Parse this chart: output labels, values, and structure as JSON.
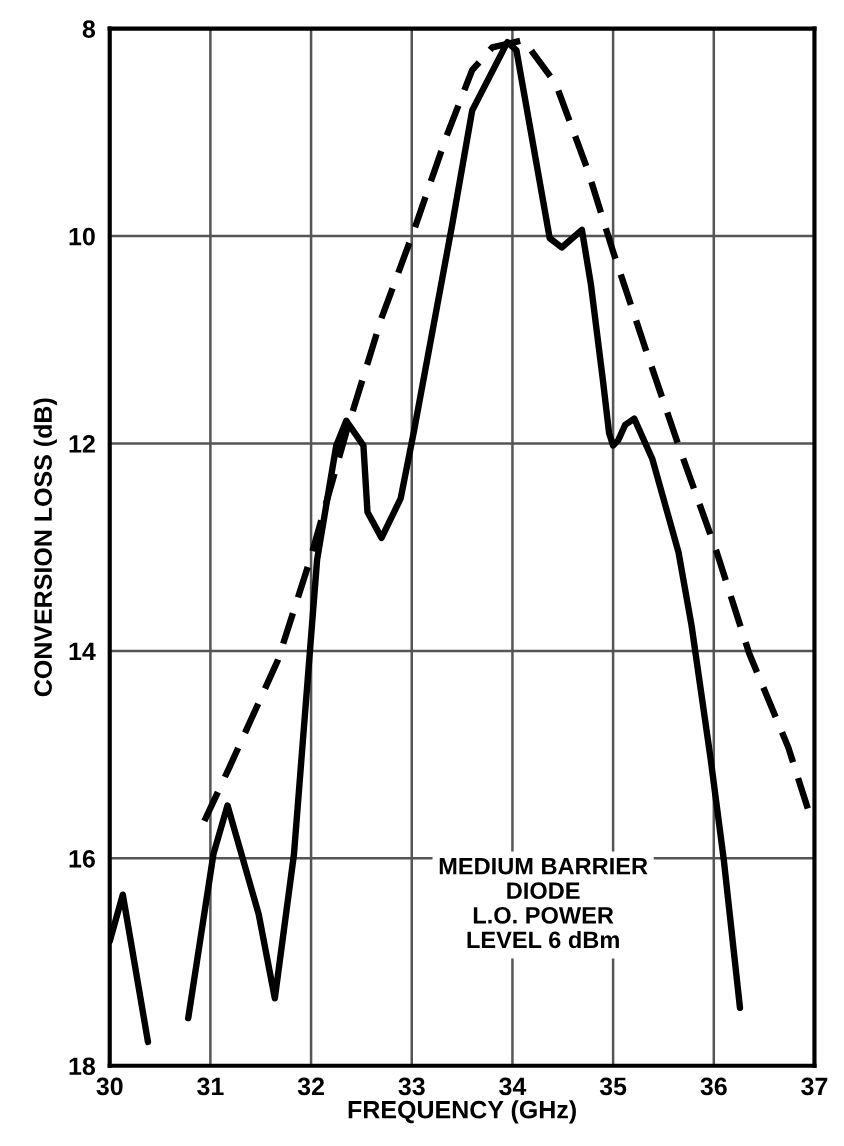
{
  "chart_data": {
    "type": "line",
    "xlabel": "FREQUENCY (GHz)",
    "ylabel": "CONVERSION LOSS (dB)",
    "xlim": [
      30,
      37
    ],
    "xticks": [
      30,
      31,
      32,
      33,
      34,
      35,
      36,
      37
    ],
    "ylim": [
      18,
      8
    ],
    "yticks": [
      8,
      10,
      12,
      14,
      16,
      18
    ],
    "grid": true,
    "annotations": [
      "MEDIUM BARRIER\nDIODE\nL.O. POWER\nLEVEL 6 dBm"
    ],
    "series": [
      {
        "color": "#000000",
        "line_style": "solid",
        "x": [
          30.0,
          30.13,
          30.38,
          30.5,
          30.78,
          31.03,
          31.17,
          31.48,
          31.64,
          31.83,
          32.06,
          32.25,
          32.35,
          32.52,
          32.56,
          32.7,
          32.89,
          33.02,
          33.4,
          33.6,
          33.95,
          34.04,
          34.37,
          34.49,
          34.69,
          34.78,
          34.9,
          34.96,
          35.0,
          35.05,
          35.12,
          35.21,
          35.39,
          35.65,
          35.78,
          35.97,
          36.1,
          36.26
        ],
        "values": [
          16.8,
          16.35,
          17.77,
          null,
          17.54,
          15.96,
          15.49,
          16.54,
          17.35,
          15.96,
          13.12,
          12.02,
          11.78,
          12.02,
          12.66,
          12.91,
          12.53,
          11.89,
          9.9,
          8.79,
          8.13,
          8.21,
          10.02,
          10.11,
          9.94,
          10.47,
          11.4,
          11.9,
          12.02,
          11.97,
          11.82,
          11.76,
          12.15,
          13.05,
          13.76,
          15.05,
          16.02,
          17.44
        ]
      },
      {
        "color": "#000000",
        "line_style": "dashed",
        "x": [
          30.94,
          31.19,
          31.67,
          31.99,
          32.35,
          32.7,
          33.02,
          33.34,
          33.6,
          33.8,
          34.11,
          34.43,
          34.75,
          35.0,
          35.33,
          35.65,
          36.03,
          36.35,
          36.74,
          36.96
        ],
        "values": [
          15.64,
          15.12,
          14.09,
          13.12,
          11.89,
          10.79,
          9.95,
          9.05,
          8.4,
          8.18,
          8.11,
          8.53,
          9.37,
          10.15,
          11.11,
          12.02,
          13.05,
          14.02,
          14.93,
          15.6
        ]
      }
    ]
  }
}
